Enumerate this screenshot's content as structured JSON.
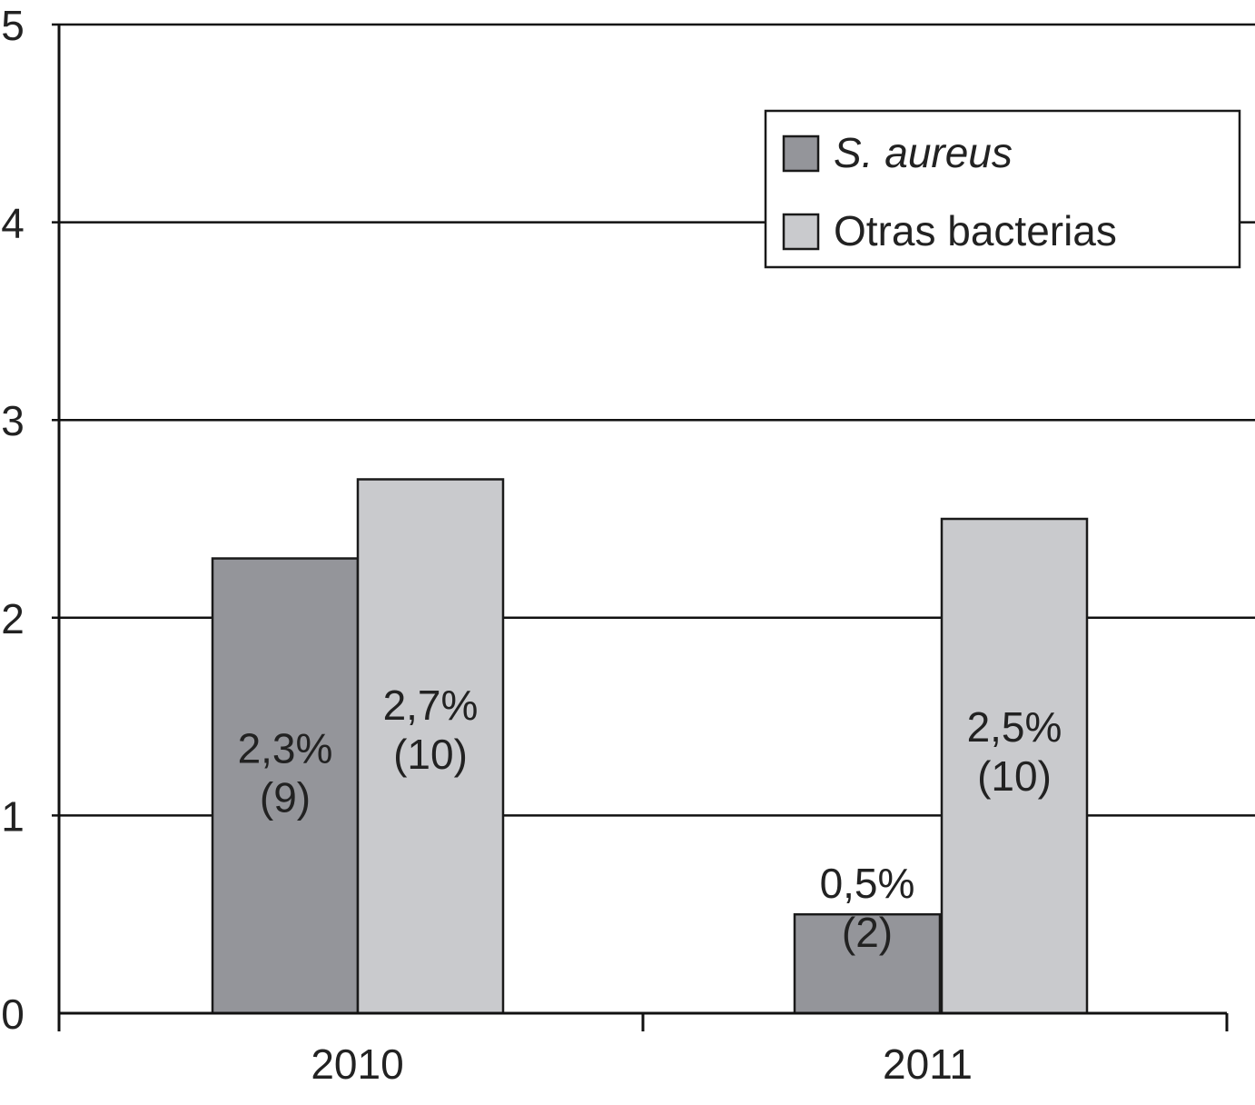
{
  "chart_data": {
    "type": "bar",
    "categories": [
      "2010",
      "2011"
    ],
    "ylim": [
      0,
      5
    ],
    "yticks": [
      0,
      1,
      2,
      3,
      4,
      5
    ],
    "grid": true,
    "legend_position": "top-right",
    "series": [
      {
        "name": "S. aureus",
        "color": "#94959a",
        "values": [
          2.3,
          0.5
        ],
        "labels": [
          [
            "2,3%",
            "(9)"
          ],
          [
            "0,5%",
            "(2)"
          ]
        ]
      },
      {
        "name": "Otras bacterias",
        "color": "#c9cacd",
        "values": [
          2.7,
          2.5
        ],
        "labels": [
          [
            "2,7%",
            "(10)"
          ],
          [
            "2,5%",
            "(10)"
          ]
        ]
      }
    ]
  }
}
